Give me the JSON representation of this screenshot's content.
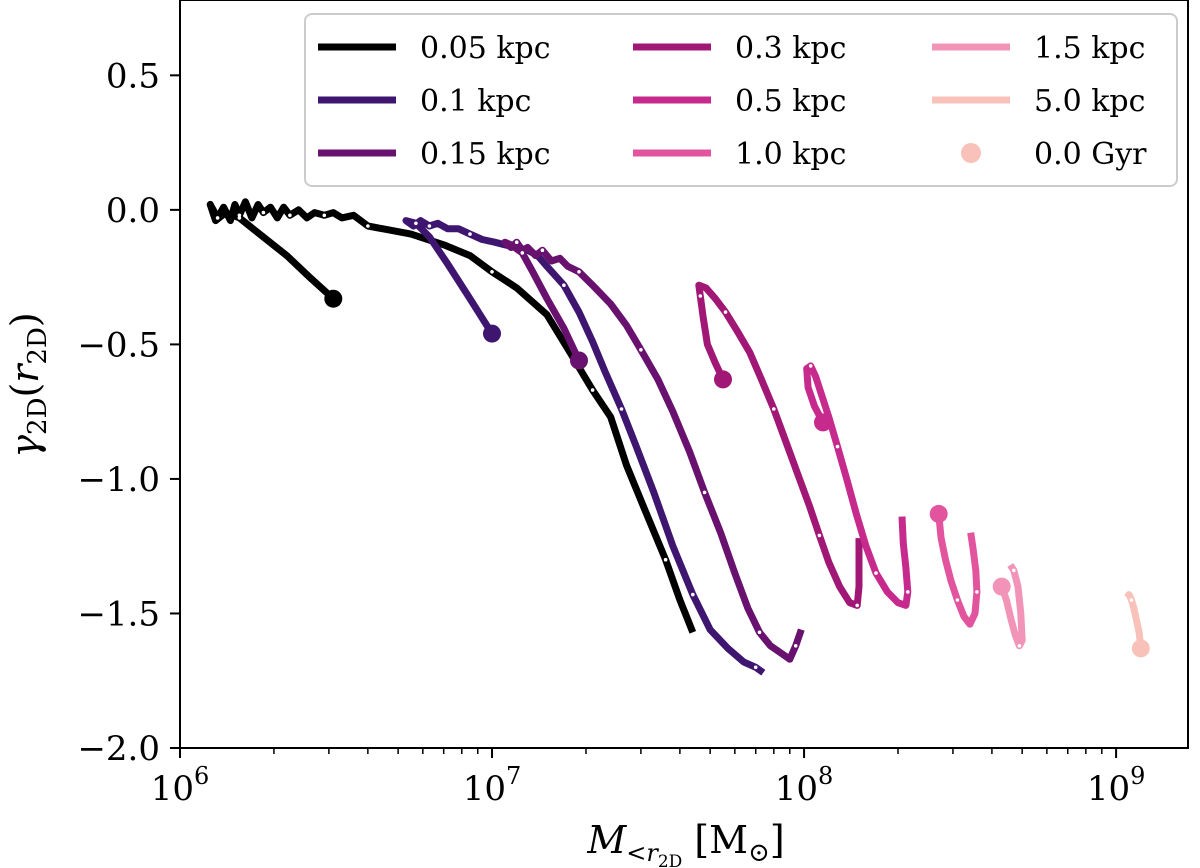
{
  "chart_data": {
    "type": "line",
    "xscale": "log",
    "xlim": [
      1000000,
      1700000000
    ],
    "ylim": [
      -2.0,
      0.78
    ],
    "xticks": [
      {
        "value": 1000000,
        "base": "10",
        "exp": "6"
      },
      {
        "value": 10000000,
        "base": "10",
        "exp": "7"
      },
      {
        "value": 100000000,
        "base": "10",
        "exp": "8"
      },
      {
        "value": 1000000000,
        "base": "10",
        "exp": "9"
      }
    ],
    "yticks": [
      {
        "value": 0.5,
        "label": "0.5"
      },
      {
        "value": 0.0,
        "label": "0.0"
      },
      {
        "value": -0.5,
        "label": "−0.5"
      },
      {
        "value": -1.0,
        "label": "−1.0"
      },
      {
        "value": -1.5,
        "label": "−1.5"
      },
      {
        "value": -2.0,
        "label": "−2.0"
      }
    ],
    "ylabel": {
      "main": "γ",
      "sub": "2D",
      "paren_open": "(",
      "var": "r",
      "var_sub": "2D",
      "paren_close": ")"
    },
    "xlabel": {
      "main": "M",
      "sub_lt": "<",
      "sub_r": "r",
      "sub_2d": "2D",
      "unit": "[M",
      "sun": "⊙",
      "close": "]"
    },
    "legend_location": "upper-right",
    "marker_legend": {
      "name": "0.0 Gyr",
      "color": "#f8c2ba"
    },
    "series": [
      {
        "name": "0.05 kpc",
        "color": "#000000",
        "start": [
          3100000,
          -0.33
        ],
        "points": [
          [
            3100000,
            -0.33
          ],
          [
            2600000,
            -0.25
          ],
          [
            2200000,
            -0.17
          ],
          [
            1800000,
            -0.09
          ],
          [
            1550000,
            -0.03
          ],
          [
            1400000,
            -0.01
          ],
          [
            1300000,
            -0.04
          ],
          [
            1250000,
            0.02
          ],
          [
            1320000,
            -0.03
          ],
          [
            1380000,
            0.01
          ],
          [
            1450000,
            -0.04
          ],
          [
            1500000,
            0.02
          ],
          [
            1550000,
            -0.02
          ],
          [
            1620000,
            0.03
          ],
          [
            1700000,
            -0.03
          ],
          [
            1780000,
            0.02
          ],
          [
            1850000,
            -0.01
          ],
          [
            1950000,
            0.01
          ],
          [
            2050000,
            -0.03
          ],
          [
            2150000,
            0.01
          ],
          [
            2250000,
            -0.02
          ],
          [
            2400000,
            0.0
          ],
          [
            2550000,
            -0.03
          ],
          [
            2700000,
            -0.01
          ],
          [
            2900000,
            -0.02
          ],
          [
            3100000,
            -0.01
          ],
          [
            3300000,
            -0.03
          ],
          [
            3600000,
            -0.02
          ],
          [
            4000000,
            -0.06
          ],
          [
            5500000,
            -0.09
          ],
          [
            7000000,
            -0.13
          ],
          [
            8500000,
            -0.17
          ],
          [
            10000000,
            -0.23
          ],
          [
            12000000,
            -0.29
          ],
          [
            15000000,
            -0.39
          ],
          [
            18000000,
            -0.54
          ],
          [
            21000000,
            -0.67
          ],
          [
            24000000,
            -0.77
          ],
          [
            27000000,
            -0.95
          ],
          [
            31000000,
            -1.12
          ],
          [
            36000000,
            -1.3
          ],
          [
            40000000,
            -1.45
          ],
          [
            44000000,
            -1.57
          ]
        ]
      },
      {
        "name": "0.1 kpc",
        "color": "#3e1670",
        "start": [
          10000000,
          -0.46
        ],
        "points": [
          [
            10000000,
            -0.46
          ],
          [
            8500000,
            -0.33
          ],
          [
            7200000,
            -0.2
          ],
          [
            6300000,
            -0.1
          ],
          [
            5700000,
            -0.05
          ],
          [
            5300000,
            -0.04
          ],
          [
            5600000,
            -0.06
          ],
          [
            5900000,
            -0.04
          ],
          [
            6300000,
            -0.06
          ],
          [
            6700000,
            -0.05
          ],
          [
            7200000,
            -0.07
          ],
          [
            7800000,
            -0.07
          ],
          [
            8500000,
            -0.09
          ],
          [
            9300000,
            -0.11
          ],
          [
            10200000,
            -0.12
          ],
          [
            11000000,
            -0.13
          ],
          [
            12000000,
            -0.14
          ],
          [
            13000000,
            -0.15
          ],
          [
            14000000,
            -0.17
          ],
          [
            15000000,
            -0.21
          ],
          [
            17000000,
            -0.28
          ],
          [
            19000000,
            -0.38
          ],
          [
            21000000,
            -0.49
          ],
          [
            23000000,
            -0.6
          ],
          [
            26000000,
            -0.74
          ],
          [
            29000000,
            -0.88
          ],
          [
            33000000,
            -1.05
          ],
          [
            38000000,
            -1.25
          ],
          [
            44000000,
            -1.43
          ],
          [
            50000000,
            -1.56
          ],
          [
            57000000,
            -1.63
          ],
          [
            64000000,
            -1.68
          ],
          [
            70000000,
            -1.7
          ],
          [
            74000000,
            -1.72
          ]
        ]
      },
      {
        "name": "0.15 kpc",
        "color": "#69116f",
        "start": [
          19000000,
          -0.56
        ],
        "points": [
          [
            19000000,
            -0.56
          ],
          [
            17000000,
            -0.44
          ],
          [
            15000000,
            -0.33
          ],
          [
            13500000,
            -0.23
          ],
          [
            12500000,
            -0.16
          ],
          [
            11500000,
            -0.13
          ],
          [
            11000000,
            -0.12
          ],
          [
            11500000,
            -0.14
          ],
          [
            12000000,
            -0.12
          ],
          [
            12500000,
            -0.15
          ],
          [
            13000000,
            -0.14
          ],
          [
            13800000,
            -0.17
          ],
          [
            14500000,
            -0.15
          ],
          [
            15500000,
            -0.19
          ],
          [
            16500000,
            -0.18
          ],
          [
            17500000,
            -0.21
          ],
          [
            19000000,
            -0.23
          ],
          [
            21000000,
            -0.28
          ],
          [
            24000000,
            -0.35
          ],
          [
            27000000,
            -0.43
          ],
          [
            30000000,
            -0.52
          ],
          [
            34000000,
            -0.63
          ],
          [
            38000000,
            -0.75
          ],
          [
            43000000,
            -0.9
          ],
          [
            48000000,
            -1.05
          ],
          [
            54000000,
            -1.2
          ],
          [
            60000000,
            -1.35
          ],
          [
            66000000,
            -1.48
          ],
          [
            72000000,
            -1.57
          ],
          [
            78000000,
            -1.62
          ],
          [
            85000000,
            -1.65
          ],
          [
            90000000,
            -1.67
          ],
          [
            94000000,
            -1.62
          ],
          [
            98000000,
            -1.56
          ]
        ]
      },
      {
        "name": "0.3 kpc",
        "color": "#a11775",
        "start": [
          55000000,
          -0.63
        ],
        "points": [
          [
            55000000,
            -0.63
          ],
          [
            52000000,
            -0.57
          ],
          [
            49000000,
            -0.5
          ],
          [
            47500000,
            -0.4
          ],
          [
            46500000,
            -0.32
          ],
          [
            46000000,
            -0.28
          ],
          [
            48500000,
            -0.29
          ],
          [
            52000000,
            -0.33
          ],
          [
            56000000,
            -0.38
          ],
          [
            61000000,
            -0.45
          ],
          [
            67000000,
            -0.53
          ],
          [
            73000000,
            -0.63
          ],
          [
            80000000,
            -0.74
          ],
          [
            88000000,
            -0.87
          ],
          [
            96000000,
            -0.99
          ],
          [
            104000000,
            -1.1
          ],
          [
            112000000,
            -1.21
          ],
          [
            120000000,
            -1.31
          ],
          [
            130000000,
            -1.4
          ],
          [
            140000000,
            -1.46
          ],
          [
            148000000,
            -1.47
          ],
          [
            150000000,
            -1.4
          ],
          [
            150000000,
            -1.3
          ],
          [
            150000000,
            -1.22
          ]
        ]
      },
      {
        "name": "0.5 kpc",
        "color": "#c72a8d",
        "start": [
          115000000,
          -0.79
        ],
        "points": [
          [
            115000000,
            -0.79
          ],
          [
            108000000,
            -0.73
          ],
          [
            103000000,
            -0.66
          ],
          [
            102000000,
            -0.59
          ],
          [
            105000000,
            -0.58
          ],
          [
            109000000,
            -0.62
          ],
          [
            114000000,
            -0.69
          ],
          [
            120000000,
            -0.77
          ],
          [
            128000000,
            -0.88
          ],
          [
            137000000,
            -1.0
          ],
          [
            147000000,
            -1.13
          ],
          [
            158000000,
            -1.25
          ],
          [
            170000000,
            -1.35
          ],
          [
            185000000,
            -1.42
          ],
          [
            200000000,
            -1.46
          ],
          [
            212000000,
            -1.47
          ],
          [
            215000000,
            -1.42
          ],
          [
            212000000,
            -1.33
          ],
          [
            208000000,
            -1.24
          ],
          [
            206000000,
            -1.14
          ]
        ]
      },
      {
        "name": "1.0 kpc",
        "color": "#e2559e",
        "start": [
          270000000,
          -1.13
        ],
        "points": [
          [
            270000000,
            -1.13
          ],
          [
            275000000,
            -1.22
          ],
          [
            284000000,
            -1.3
          ],
          [
            296000000,
            -1.38
          ],
          [
            310000000,
            -1.45
          ],
          [
            325000000,
            -1.51
          ],
          [
            340000000,
            -1.54
          ],
          [
            353000000,
            -1.5
          ],
          [
            358000000,
            -1.42
          ],
          [
            355000000,
            -1.34
          ],
          [
            348000000,
            -1.26
          ],
          [
            342000000,
            -1.2
          ]
        ]
      },
      {
        "name": "1.5 kpc",
        "color": "#f294b8",
        "start": [
          430000000,
          -1.4
        ],
        "points": [
          [
            430000000,
            -1.4
          ],
          [
            445000000,
            -1.45
          ],
          [
            460000000,
            -1.52
          ],
          [
            475000000,
            -1.58
          ],
          [
            490000000,
            -1.62
          ],
          [
            500000000,
            -1.6
          ],
          [
            495000000,
            -1.5
          ],
          [
            485000000,
            -1.4
          ],
          [
            470000000,
            -1.34
          ],
          [
            458000000,
            -1.32
          ]
        ]
      },
      {
        "name": "5.0 kpc",
        "color": "#f8c2ba",
        "start": [
          1200000000,
          -1.63
        ],
        "points": [
          [
            1200000000,
            -1.63
          ],
          [
            1185000000,
            -1.57
          ],
          [
            1160000000,
            -1.52
          ],
          [
            1140000000,
            -1.48
          ],
          [
            1120000000,
            -1.45
          ],
          [
            1100000000,
            -1.43
          ],
          [
            1085000000,
            -1.44
          ]
        ]
      }
    ]
  }
}
